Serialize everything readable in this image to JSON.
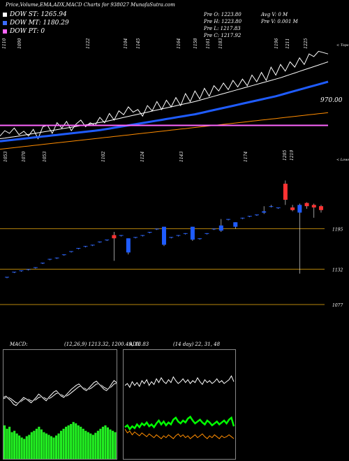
{
  "header": {
    "title": "Price,Volume,EMA,ADX,MACD Charts for 938027 MunafaSutra.com"
  },
  "legend": [
    {
      "label": "DOW ST: 1265.94",
      "color": "#ffffff"
    },
    {
      "label": "DOW MT: 1180.29",
      "color": "#3b6cff"
    },
    {
      "label": "DOW PT: 0",
      "color": "#ff66ff"
    }
  ],
  "ohlc": {
    "open": "Pre   O: 1223.80",
    "high": "Pre   H: 1223.80",
    "low": "Pre   L: 1217.83",
    "close": "Pre   C: 1217.92",
    "avg_volume": "Avg V: 0  M",
    "prev_volume": "Pre   V: 0.001 M"
  },
  "chart_data": [
    {
      "type": "line",
      "name": "ema-panel",
      "top_labels": [
        "1110",
        "1090",
        "1122",
        "1104",
        "1145",
        "1164",
        "1158",
        "1161",
        "1183",
        "1196",
        "1211",
        "1225"
      ],
      "bottom_labels": [
        "1053",
        "1070",
        "1053",
        "1102",
        "1124",
        "1143",
        "1174"
      ],
      "corner_label": "< Tops",
      "right_label": "970.00",
      "series": [
        {
          "color": "#ffffff",
          "values": [
            1130,
            1150,
            1140,
            1160,
            1135,
            1148,
            1130,
            1155,
            1120,
            1165,
            1170,
            1140,
            1180,
            1160,
            1185,
            1150,
            1175,
            1190,
            1165,
            1180,
            1170,
            1200,
            1180,
            1215,
            1190,
            1225,
            1210,
            1240,
            1220,
            1230,
            1205,
            1245,
            1225,
            1260,
            1230,
            1265,
            1240,
            1275,
            1245,
            1290,
            1260,
            1300,
            1270,
            1310,
            1280,
            1320,
            1300,
            1330,
            1305,
            1340,
            1315,
            1345,
            1320,
            1360,
            1335,
            1370,
            1340,
            1390,
            1360,
            1400,
            1375,
            1410,
            1390,
            1425,
            1400,
            1440,
            1430,
            1450,
            1445,
            1440
          ]
        },
        {
          "color": "#ffffff",
          "values": [
            1120,
            1122,
            1125,
            1127,
            1130,
            1133,
            1136,
            1139,
            1142,
            1145,
            1148,
            1151,
            1154,
            1157,
            1160,
            1163,
            1166,
            1169,
            1172,
            1175,
            1178,
            1181,
            1184,
            1188,
            1192,
            1196,
            1200,
            1204,
            1208,
            1212,
            1216,
            1220,
            1224,
            1228,
            1232,
            1236,
            1240,
            1244,
            1248,
            1252,
            1256,
            1260,
            1265,
            1270,
            1275,
            1280,
            1285,
            1290,
            1295,
            1300,
            1305,
            1310,
            1315,
            1320,
            1325,
            1330,
            1335,
            1340,
            1345,
            1350,
            1356,
            1362,
            1368,
            1374,
            1380,
            1386,
            1392,
            1398,
            1404,
            1410
          ]
        },
        {
          "color": "#1f5cff",
          "values": [
            1110,
            1112,
            1114,
            1116,
            1118,
            1120,
            1122,
            1124,
            1126,
            1128,
            1130,
            1132,
            1134,
            1136,
            1138,
            1140,
            1142,
            1144,
            1146,
            1148,
            1150,
            1152,
            1155,
            1158,
            1161,
            1164,
            1167,
            1170,
            1173,
            1176,
            1179,
            1182,
            1185,
            1188,
            1191,
            1194,
            1197,
            1200,
            1203,
            1206,
            1209,
            1212,
            1216,
            1220,
            1224,
            1228,
            1232,
            1236,
            1240,
            1244,
            1248,
            1252,
            1256,
            1260,
            1264,
            1268,
            1272,
            1276,
            1280,
            1285,
            1290,
            1295,
            1300,
            1305,
            1310,
            1315,
            1320,
            1325,
            1330,
            1335
          ]
        },
        {
          "color": "#ff8c00",
          "values": [
            1080,
            1082,
            1084,
            1086,
            1088,
            1090,
            1092,
            1094,
            1096,
            1098,
            1100,
            1102,
            1104,
            1106,
            1108,
            1110,
            1112,
            1114,
            1116,
            1118,
            1120,
            1122,
            1124,
            1126,
            1128,
            1130,
            1132,
            1134,
            1136,
            1138,
            1140,
            1142,
            1144,
            1146,
            1148,
            1150,
            1152,
            1154,
            1156,
            1158,
            1160,
            1162,
            1164,
            1166,
            1168,
            1170,
            1172,
            1174,
            1176,
            1178,
            1180,
            1182,
            1184,
            1186,
            1188,
            1190,
            1192,
            1194,
            1196,
            1198,
            1200,
            1202,
            1204,
            1206,
            1208,
            1210,
            1212,
            1214,
            1216,
            1218
          ]
        },
        {
          "color": "#ff66ff",
          "values": [
            1170,
            1170,
            1170,
            1170,
            1170,
            1170,
            1170,
            1170,
            1170,
            1170,
            1170,
            1170,
            1170,
            1170,
            1170,
            1170,
            1170,
            1170,
            1170,
            1170,
            1170,
            1170,
            1170,
            1170,
            1170,
            1170,
            1170,
            1170,
            1170,
            1170,
            1170,
            1170,
            1170,
            1170,
            1170,
            1170,
            1170,
            1170,
            1170,
            1170,
            1170,
            1170,
            1170,
            1170,
            1170,
            1170,
            1170,
            1170,
            1170,
            1170,
            1170,
            1170,
            1170,
            1170,
            1170,
            1170,
            1170,
            1170,
            1170,
            1170,
            1170,
            1170,
            1170,
            1170,
            1170,
            1170,
            1170,
            1170,
            1170,
            1170
          ]
        }
      ],
      "ylim": [
        1050,
        1480
      ]
    },
    {
      "type": "candlestick",
      "name": "price-panel",
      "corner_label": "< Lows",
      "right_labels": [
        "1195",
        "1132",
        "1077"
      ],
      "levels": [
        1195,
        1132,
        1077
      ],
      "top_labels": [
        "1205",
        "1219"
      ],
      "ylim": [
        1040,
        1290
      ],
      "candles": [
        {
          "o": 1120,
          "h": 1120,
          "l": 1118,
          "c": 1120,
          "color": "#1f5cff"
        },
        {
          "o": 1128,
          "h": 1128,
          "l": 1126,
          "c": 1128,
          "color": "#1f5cff"
        },
        {
          "o": 1130,
          "h": 1130,
          "l": 1128,
          "c": 1130,
          "color": "#1f5cff"
        },
        {
          "o": 1132,
          "h": 1132,
          "l": 1130,
          "c": 1132,
          "color": "#1f5cff"
        },
        {
          "o": 1135,
          "h": 1135,
          "l": 1133,
          "c": 1135,
          "color": "#1f5cff"
        },
        {
          "o": 1142,
          "h": 1142,
          "l": 1140,
          "c": 1142,
          "color": "#1f5cff"
        },
        {
          "o": 1148,
          "h": 1148,
          "l": 1146,
          "c": 1148,
          "color": "#1f5cff"
        },
        {
          "o": 1150,
          "h": 1150,
          "l": 1148,
          "c": 1150,
          "color": "#1f5cff"
        },
        {
          "o": 1155,
          "h": 1155,
          "l": 1153,
          "c": 1155,
          "color": "#1f5cff"
        },
        {
          "o": 1160,
          "h": 1160,
          "l": 1158,
          "c": 1160,
          "color": "#1f5cff"
        },
        {
          "o": 1165,
          "h": 1165,
          "l": 1163,
          "c": 1165,
          "color": "#1f5cff"
        },
        {
          "o": 1168,
          "h": 1168,
          "l": 1166,
          "c": 1168,
          "color": "#1f5cff"
        },
        {
          "o": 1170,
          "h": 1170,
          "l": 1168,
          "c": 1170,
          "color": "#1f5cff"
        },
        {
          "o": 1175,
          "h": 1175,
          "l": 1173,
          "c": 1175,
          "color": "#1f5cff"
        },
        {
          "o": 1178,
          "h": 1178,
          "l": 1176,
          "c": 1178,
          "color": "#1f5cff"
        },
        {
          "o": 1180,
          "h": 1190,
          "l": 1145,
          "c": 1185,
          "color": "#ff3333"
        },
        {
          "o": 1185,
          "h": 1185,
          "l": 1183,
          "c": 1185,
          "color": "#1f5cff"
        },
        {
          "o": 1180,
          "h": 1180,
          "l": 1155,
          "c": 1158,
          "color": "#1f5cff"
        },
        {
          "o": 1182,
          "h": 1182,
          "l": 1180,
          "c": 1182,
          "color": "#1f5cff"
        },
        {
          "o": 1185,
          "h": 1185,
          "l": 1183,
          "c": 1185,
          "color": "#1f5cff"
        },
        {
          "o": 1190,
          "h": 1190,
          "l": 1188,
          "c": 1190,
          "color": "#1f5cff"
        },
        {
          "o": 1195,
          "h": 1195,
          "l": 1193,
          "c": 1195,
          "color": "#1f5cff"
        },
        {
          "o": 1198,
          "h": 1198,
          "l": 1168,
          "c": 1170,
          "color": "#1f5cff"
        },
        {
          "o": 1182,
          "h": 1182,
          "l": 1180,
          "c": 1182,
          "color": "#1f5cff"
        },
        {
          "o": 1185,
          "h": 1185,
          "l": 1183,
          "c": 1185,
          "color": "#1f5cff"
        },
        {
          "o": 1188,
          "h": 1188,
          "l": 1186,
          "c": 1188,
          "color": "#1f5cff"
        },
        {
          "o": 1198,
          "h": 1198,
          "l": 1176,
          "c": 1178,
          "color": "#1f5cff"
        },
        {
          "o": 1180,
          "h": 1180,
          "l": 1178,
          "c": 1180,
          "color": "#1f5cff"
        },
        {
          "o": 1188,
          "h": 1188,
          "l": 1186,
          "c": 1188,
          "color": "#1f5cff"
        },
        {
          "o": 1195,
          "h": 1195,
          "l": 1193,
          "c": 1195,
          "color": "#1f5cff"
        },
        {
          "o": 1200,
          "h": 1210,
          "l": 1190,
          "c": 1192,
          "color": "#1f5cff"
        },
        {
          "o": 1210,
          "h": 1210,
          "l": 1208,
          "c": 1210,
          "color": "#1f5cff"
        },
        {
          "o": 1205,
          "h": 1205,
          "l": 1195,
          "c": 1198,
          "color": "#1f5cff"
        },
        {
          "o": 1212,
          "h": 1212,
          "l": 1210,
          "c": 1212,
          "color": "#1f5cff"
        },
        {
          "o": 1215,
          "h": 1215,
          "l": 1213,
          "c": 1215,
          "color": "#1f5cff"
        },
        {
          "o": 1217,
          "h": 1217,
          "l": 1215,
          "c": 1217,
          "color": "#1f5cff"
        },
        {
          "o": 1220,
          "h": 1230,
          "l": 1218,
          "c": 1222,
          "color": "#1f5cff"
        },
        {
          "o": 1230,
          "h": 1232,
          "l": 1228,
          "c": 1230,
          "color": "#1f5cff"
        },
        {
          "o": 1228,
          "h": 1228,
          "l": 1226,
          "c": 1228,
          "color": "#1f5cff"
        },
        {
          "o": 1240,
          "h": 1270,
          "l": 1232,
          "c": 1265,
          "color": "#ff3333"
        },
        {
          "o": 1228,
          "h": 1232,
          "l": 1222,
          "c": 1224,
          "color": "#ff3333"
        },
        {
          "o": 1232,
          "h": 1234,
          "l": 1125,
          "c": 1220,
          "color": "#1f5cff"
        },
        {
          "o": 1235,
          "h": 1236,
          "l": 1226,
          "c": 1230,
          "color": "#ff3333"
        },
        {
          "o": 1232,
          "h": 1234,
          "l": 1212,
          "c": 1228,
          "color": "#ff3333"
        },
        {
          "o": 1224,
          "h": 1232,
          "l": 1220,
          "c": 1230,
          "color": "#ff3333"
        }
      ]
    },
    {
      "type": "bar",
      "name": "macd-panel",
      "title": "MACD",
      "params": "(12,26,9) 1213.32,  1200.49,  13.83",
      "histogram": [
        60,
        55,
        58,
        50,
        52,
        48,
        45,
        42,
        40,
        44,
        46,
        50,
        52,
        55,
        58,
        54,
        50,
        48,
        46,
        44,
        42,
        45,
        48,
        52,
        55,
        58,
        60,
        62,
        65,
        63,
        60,
        58,
        55,
        52,
        50,
        48,
        46,
        49,
        52,
        55,
        58,
        60,
        57,
        54,
        52,
        50
      ],
      "macd_line": [
        60,
        62,
        58,
        55,
        50,
        48,
        52,
        56,
        60,
        58,
        55,
        52,
        56,
        60,
        65,
        62,
        58,
        55,
        60,
        64,
        68,
        70,
        66,
        62,
        60,
        64,
        68,
        72,
        75,
        78,
        80,
        76,
        72,
        70,
        74,
        78,
        82,
        84,
        80,
        76,
        72,
        70,
        74,
        80,
        85,
        82
      ],
      "signal_line": [
        58,
        60,
        60,
        58,
        55,
        52,
        52,
        54,
        57,
        58,
        57,
        55,
        55,
        57,
        60,
        61,
        60,
        58,
        58,
        60,
        63,
        66,
        66,
        64,
        62,
        62,
        64,
        67,
        70,
        73,
        76,
        76,
        74,
        72,
        72,
        74,
        77,
        80,
        80,
        78,
        75,
        73,
        73,
        76,
        80,
        81
      ],
      "ylim": [
        0,
        120
      ]
    },
    {
      "type": "line",
      "name": "adx-panel",
      "title": "ADX",
      "params": "(14 day) 22,  31,  48",
      "series": [
        {
          "color": "#ffffff",
          "values": [
            70,
            72,
            68,
            74,
            70,
            73,
            69,
            75,
            72,
            76,
            70,
            74,
            71,
            77,
            73,
            78,
            74,
            72,
            76,
            73,
            79,
            75,
            72,
            74,
            77,
            73,
            76,
            72,
            75,
            73,
            78,
            74,
            71,
            76,
            73,
            75,
            72,
            74,
            77,
            73,
            75,
            72,
            74,
            76,
            80,
            74
          ]
        },
        {
          "color": "#00ff00",
          "values": [
            26,
            28,
            24,
            27,
            25,
            29,
            26,
            30,
            28,
            31,
            27,
            29,
            26,
            30,
            33,
            29,
            32,
            28,
            31,
            29,
            34,
            36,
            32,
            30,
            33,
            31,
            35,
            37,
            33,
            30,
            32,
            34,
            31,
            29,
            33,
            31,
            28,
            30,
            32,
            29,
            31,
            33,
            30,
            34,
            36,
            27
          ]
        },
        {
          "color": "#ff8c00",
          "values": [
            24,
            20,
            22,
            18,
            21,
            19,
            17,
            20,
            18,
            16,
            19,
            17,
            15,
            18,
            16,
            14,
            17,
            15,
            18,
            16,
            14,
            17,
            19,
            16,
            18,
            15,
            17,
            14,
            16,
            18,
            15,
            17,
            19,
            16,
            14,
            17,
            15,
            18,
            16,
            14,
            17,
            15,
            16,
            18,
            16,
            14
          ]
        }
      ],
      "ylim": [
        0,
        100
      ]
    }
  ]
}
